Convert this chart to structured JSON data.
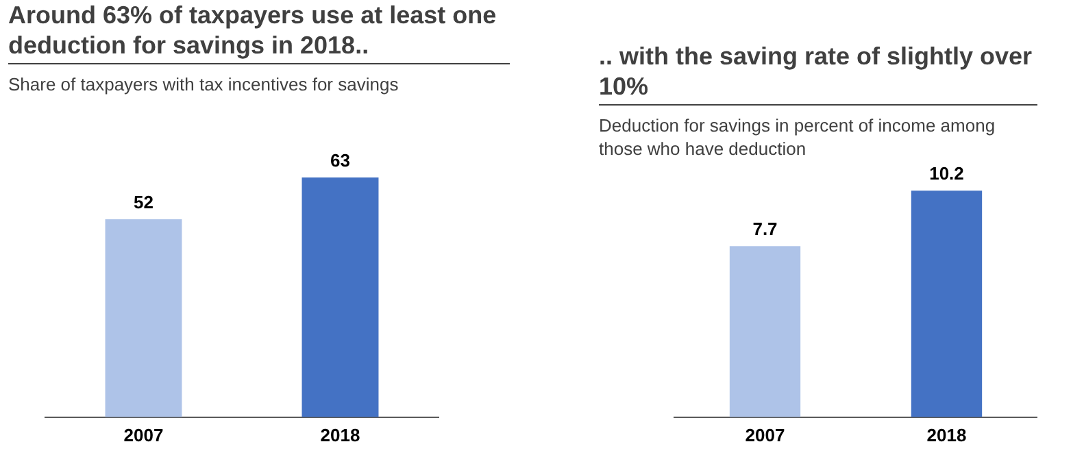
{
  "chart_data": [
    {
      "type": "bar",
      "title": "Around 63% of taxpayers use at least one deduction for savings in 2018..",
      "subtitle": "Share of taxpayers with tax incentives for savings",
      "categories": [
        "2007",
        "2018"
      ],
      "values": [
        52,
        63
      ],
      "colors": [
        "#aec3e8",
        "#4472c4"
      ],
      "data_labels": true,
      "legend": false,
      "grid": false,
      "tick_labels": "x"
    },
    {
      "type": "bar",
      "title": ".. with the saving rate of slightly over 10%",
      "subtitle": "Deduction for savings in percent of income among those who have deduction",
      "categories": [
        "2007",
        "2018"
      ],
      "values": [
        7.7,
        10.2
      ],
      "colors": [
        "#aec3e8",
        "#4472c4"
      ],
      "data_labels": true,
      "legend": false,
      "grid": false,
      "tick_labels": "x"
    }
  ]
}
